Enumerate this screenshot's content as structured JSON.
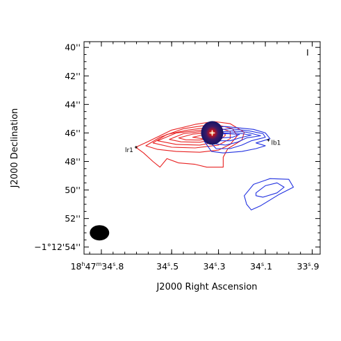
{
  "chart_data": {
    "type": "contour",
    "panel_label": "I",
    "xlabel": "J2000 Right Ascension",
    "ylabel": "J2000 Declination",
    "x_ticks": [
      {
        "h": "18",
        "m": "47",
        "s": "34",
        "frac": ".8",
        "value": 34.8
      },
      {
        "s": "34",
        "frac": ".5",
        "value": 34.5
      },
      {
        "s": "34",
        "frac": ".3",
        "value": 34.3
      },
      {
        "s": "34",
        "frac": ".1",
        "value": 34.1
      },
      {
        "s": "33",
        "frac": ".9",
        "value": 33.9
      }
    ],
    "y_ticks": [
      {
        "label": "40''",
        "value": 40
      },
      {
        "label": "42''",
        "value": 42
      },
      {
        "label": "44''",
        "value": 44
      },
      {
        "label": "46''",
        "value": 46
      },
      {
        "label": "48''",
        "value": 48
      },
      {
        "label": "50''",
        "value": 50
      },
      {
        "label": "52''",
        "value": 52
      },
      {
        "label": "−1°12'54''",
        "value": 54
      }
    ],
    "xlim": [
      34.874,
      33.866
    ],
    "ylim": [
      54.5,
      39.6
    ],
    "annotations": [
      {
        "text": "lr1",
        "x": 34.652,
        "y": 47.0
      },
      {
        "text": "lb1",
        "x": 34.087,
        "y": 46.5
      }
    ],
    "source": {
      "x": 34.327,
      "y": 46.0,
      "marker": "+"
    },
    "beam": {
      "x": 34.808,
      "y": 53.0,
      "major_arcsec": 1.0,
      "minor_arcsec": 0.75
    },
    "series": [
      {
        "color": "#e82020",
        "contours": [
          [
            [
              34.653,
              47.0
            ],
            [
              34.6,
              46.6
            ],
            [
              34.5,
              45.8
            ],
            [
              34.4,
              45.4
            ],
            [
              34.32,
              45.2
            ],
            [
              34.25,
              45.35
            ],
            [
              34.19,
              45.95
            ],
            [
              34.2,
              46.5
            ],
            [
              34.26,
              47.1
            ],
            [
              34.28,
              47.7
            ],
            [
              34.28,
              48.4
            ],
            [
              34.35,
              48.4
            ],
            [
              34.4,
              48.2
            ],
            [
              34.47,
              48.1
            ],
            [
              34.52,
              47.8
            ],
            [
              34.55,
              48.4
            ],
            [
              34.58,
              48.0
            ],
            [
              34.62,
              47.4
            ]
          ],
          [
            [
              34.61,
              46.9
            ],
            [
              34.55,
              46.3
            ],
            [
              34.45,
              45.7
            ],
            [
              34.37,
              45.5
            ],
            [
              34.3,
              45.45
            ],
            [
              34.24,
              45.7
            ],
            [
              34.22,
              46.2
            ],
            [
              34.25,
              46.8
            ],
            [
              34.3,
              47.2
            ],
            [
              34.38,
              47.35
            ],
            [
              34.48,
              47.3
            ],
            [
              34.56,
              47.15
            ]
          ],
          [
            [
              34.58,
              46.7
            ],
            [
              34.52,
              46.1
            ],
            [
              34.43,
              45.8
            ],
            [
              34.36,
              45.65
            ],
            [
              34.3,
              45.62
            ],
            [
              34.25,
              45.9
            ],
            [
              34.25,
              46.4
            ],
            [
              34.3,
              46.85
            ],
            [
              34.4,
              47.05
            ],
            [
              34.5,
              47.0
            ]
          ],
          [
            [
              34.56,
              46.55
            ],
            [
              34.48,
              46.0
            ],
            [
              34.4,
              45.85
            ],
            [
              34.34,
              45.75
            ],
            [
              34.29,
              45.8
            ],
            [
              34.27,
              46.15
            ],
            [
              34.3,
              46.6
            ],
            [
              34.38,
              46.85
            ],
            [
              34.48,
              46.8
            ]
          ],
          [
            [
              34.51,
              46.45
            ],
            [
              34.45,
              46.05
            ],
            [
              34.38,
              45.92
            ],
            [
              34.32,
              45.88
            ],
            [
              34.29,
              46.05
            ],
            [
              34.31,
              46.45
            ],
            [
              34.38,
              46.65
            ],
            [
              34.46,
              46.62
            ]
          ],
          [
            [
              34.47,
              46.35
            ],
            [
              34.41,
              46.08
            ],
            [
              34.35,
              46.0
            ],
            [
              34.31,
              46.05
            ],
            [
              34.32,
              46.35
            ],
            [
              34.38,
              46.5
            ],
            [
              34.44,
              46.48
            ]
          ],
          [
            [
              34.41,
              46.3
            ],
            [
              34.36,
              46.12
            ],
            [
              34.33,
              46.12
            ],
            [
              34.33,
              46.3
            ],
            [
              34.37,
              46.4
            ]
          ]
        ]
      },
      {
        "color": "#2030e0",
        "contours": [
          [
            [
              34.36,
              46.6
            ],
            [
              34.33,
              45.6
            ],
            [
              34.27,
              45.55
            ],
            [
              34.15,
              45.75
            ],
            [
              34.1,
              46.0
            ],
            [
              34.08,
              46.4
            ],
            [
              34.14,
              46.7
            ],
            [
              34.1,
              46.9
            ],
            [
              34.14,
              47.1
            ],
            [
              34.2,
              47.3
            ],
            [
              34.28,
              47.4
            ],
            [
              34.33,
              47.3
            ]
          ],
          [
            [
              34.35,
              46.4
            ],
            [
              34.31,
              45.8
            ],
            [
              34.25,
              45.7
            ],
            [
              34.17,
              45.85
            ],
            [
              34.11,
              46.05
            ],
            [
              34.1,
              46.3
            ],
            [
              34.16,
              46.55
            ],
            [
              34.2,
              46.85
            ],
            [
              34.25,
              47.1
            ],
            [
              34.31,
              47.1
            ]
          ],
          [
            [
              34.34,
              46.25
            ],
            [
              34.3,
              45.95
            ],
            [
              34.24,
              45.85
            ],
            [
              34.18,
              45.95
            ],
            [
              34.12,
              46.2
            ],
            [
              34.18,
              46.35
            ],
            [
              34.22,
              46.65
            ],
            [
              34.27,
              46.85
            ],
            [
              34.32,
              46.75
            ]
          ],
          [
            [
              34.33,
              46.15
            ],
            [
              34.29,
              46.02
            ],
            [
              34.23,
              45.98
            ],
            [
              34.16,
              46.15
            ],
            [
              34.21,
              46.35
            ],
            [
              34.25,
              46.55
            ],
            [
              34.3,
              46.55
            ]
          ],
          [
            [
              34.32,
              46.1
            ],
            [
              34.27,
              46.05
            ],
            [
              34.21,
              46.1
            ],
            [
              34.24,
              46.3
            ],
            [
              34.29,
              46.35
            ]
          ],
          [
            [
              34.19,
              50.4
            ],
            [
              34.15,
              49.6
            ],
            [
              34.08,
              49.2
            ],
            [
              34.0,
              49.25
            ],
            [
              33.98,
              49.8
            ],
            [
              34.04,
              50.3
            ],
            [
              34.12,
              51.1
            ],
            [
              34.16,
              51.4
            ],
            [
              34.18,
              51.0
            ]
          ],
          [
            [
              34.14,
              50.2
            ],
            [
              34.1,
              49.7
            ],
            [
              34.05,
              49.5
            ],
            [
              34.02,
              49.8
            ],
            [
              34.05,
              50.2
            ],
            [
              34.11,
              50.5
            ],
            [
              34.14,
              50.4
            ]
          ]
        ]
      }
    ]
  }
}
